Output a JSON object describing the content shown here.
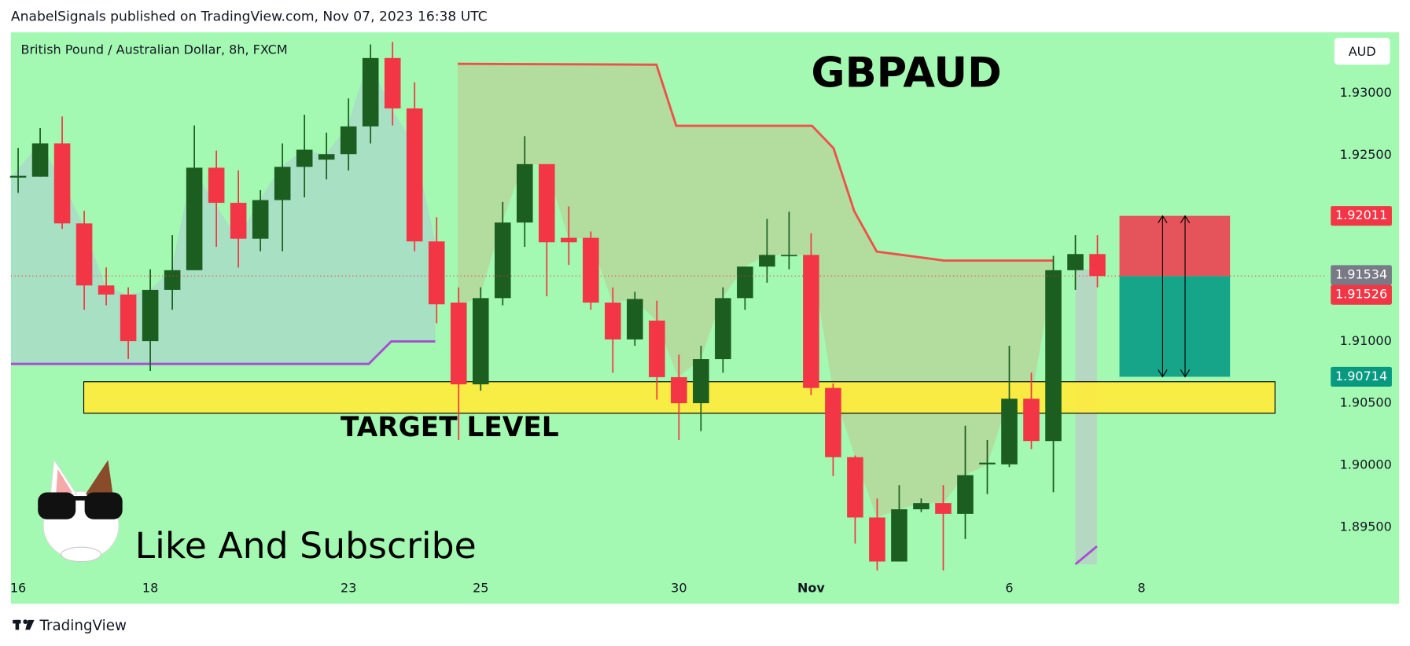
{
  "header": {
    "text": "AnabelSignals published on TradingView.com, Nov 07, 2023 16:38 UTC"
  },
  "footer": {
    "brand": "TradingView"
  },
  "chart_data": {
    "type": "candlestick",
    "title": "GBPAUD",
    "subtitle": "British Pound / Australian Dollar, 8h, FXCM",
    "currency": "AUD",
    "categories": [
      "16",
      null,
      null,
      null,
      null,
      null,
      "18",
      null,
      null,
      null,
      null,
      null,
      null,
      null,
      null,
      "23",
      null,
      null,
      null,
      null,
      null,
      "25",
      null,
      null,
      null,
      null,
      null,
      null,
      null,
      null,
      "30",
      null,
      null,
      null,
      null,
      null,
      "Nov",
      null,
      null,
      null,
      null,
      null,
      null,
      null,
      null,
      "6",
      null,
      null,
      null,
      null,
      null,
      "8"
    ],
    "open": [
      1.92319,
      1.92327,
      1.92595,
      1.9195,
      1.9145,
      1.91377,
      1.91001,
      1.91414,
      1.91573,
      1.92399,
      1.92116,
      1.91827,
      1.92138,
      1.92406,
      1.92464,
      1.92508,
      1.92732,
      1.93283,
      1.92877,
      1.91805,
      1.91312,
      1.90653,
      1.91348,
      1.91957,
      1.92428,
      1.91834,
      1.91834,
      1.91312,
      1.91015,
      1.91167,
      1.90711,
      1.90501,
      1.90856,
      1.91348,
      1.91602,
      1.91689,
      1.91696,
      1.90624,
      1.90066,
      1.8958,
      1.89225,
      1.89646,
      1.89696,
      1.89609,
      1.90008,
      1.90008,
      1.90537,
      1.90196,
      1.91573,
      1.91703,
      null,
      null
    ],
    "high": [
      1.92558,
      1.92718,
      1.92812,
      1.92051,
      1.91595,
      1.91435,
      1.9158,
      1.91856,
      1.9274,
      1.92537,
      1.92377,
      1.92218,
      1.92595,
      1.92826,
      1.92682,
      1.92957,
      1.93392,
      1.93413,
      1.93087,
      1.92,
      1.91435,
      1.91435,
      1.92124,
      1.92653,
      1.92428,
      1.92087,
      1.91885,
      1.91435,
      1.91399,
      1.91327,
      1.90892,
      1.90964,
      1.91435,
      1.91602,
      1.91986,
      1.92044,
      1.9187,
      1.9066,
      1.9008,
      1.89733,
      1.89841,
      1.89733,
      1.89841,
      1.90319,
      1.90204,
      1.90964,
      1.90747,
      1.91689,
      1.91856,
      1.91856,
      null,
      null
    ],
    "low": [
      1.92196,
      1.92327,
      1.91906,
      1.91254,
      1.9129,
      1.90856,
      1.90761,
      1.91254,
      1.9158,
      1.91761,
      1.91595,
      1.91725,
      1.91725,
      1.9216,
      1.92305,
      1.92377,
      1.92595,
      1.9274,
      1.91725,
      1.91145,
      1.90204,
      1.90602,
      1.9129,
      1.91761,
      1.91363,
      1.91616,
      1.91254,
      1.90747,
      1.90964,
      1.9053,
      1.90204,
      1.90276,
      1.90747,
      1.91254,
      1.91472,
      1.9158,
      1.90566,
      1.89914,
      1.8937,
      1.89153,
      1.89225,
      1.89624,
      1.89153,
      1.89406,
      1.89769,
      1.89986,
      1.90131,
      1.89783,
      1.91414,
      1.91435,
      null,
      null
    ],
    "close": [
      1.92334,
      1.92595,
      1.9195,
      1.9145,
      1.91377,
      1.91001,
      1.91414,
      1.91573,
      1.92399,
      1.92116,
      1.91827,
      1.92138,
      1.92406,
      1.92544,
      1.92508,
      1.92732,
      1.93283,
      1.92877,
      1.91805,
      1.91298,
      1.90653,
      1.91348,
      1.91957,
      1.92428,
      1.91798,
      1.91798,
      1.91312,
      1.91015,
      1.91341,
      1.90711,
      1.90501,
      1.90856,
      1.91348,
      1.91602,
      1.91696,
      1.91696,
      1.90624,
      1.90066,
      1.8958,
      1.89225,
      1.89646,
      1.89696,
      1.89609,
      1.89921,
      1.90022,
      1.90537,
      1.90196,
      1.91573,
      1.91703,
      1.91526,
      null,
      null
    ],
    "up_color": "#1b5e20",
    "down_color": "#f23645",
    "ylim": [
      1.8908,
      1.9349
    ],
    "yticks": [
      {
        "value": 1.895,
        "label": "1.89500"
      },
      {
        "value": 1.9,
        "label": "1.90000"
      },
      {
        "value": 1.905,
        "label": "1.90500"
      },
      {
        "value": 1.91,
        "label": "1.91000"
      },
      {
        "value": 1.925,
        "label": "1.92500"
      },
      {
        "value": 1.93,
        "label": "1.93000"
      }
    ],
    "price_labels": [
      {
        "value": 1.92011,
        "label": "1.92011",
        "color": "#f23645"
      },
      {
        "value": 1.91534,
        "label": "1.91534",
        "color": "#787b86"
      },
      {
        "value": 1.91526,
        "label": "1.91526",
        "color": "#f23645"
      },
      {
        "value": 1.90714,
        "label": "1.90714",
        "color": "#089981"
      }
    ],
    "target_zone": {
      "label": "TARGET LEVEL",
      "range": [
        1.9042,
        1.90674
      ],
      "color": "#ffeb3b"
    },
    "annotation": "Like And Subscribe"
  }
}
